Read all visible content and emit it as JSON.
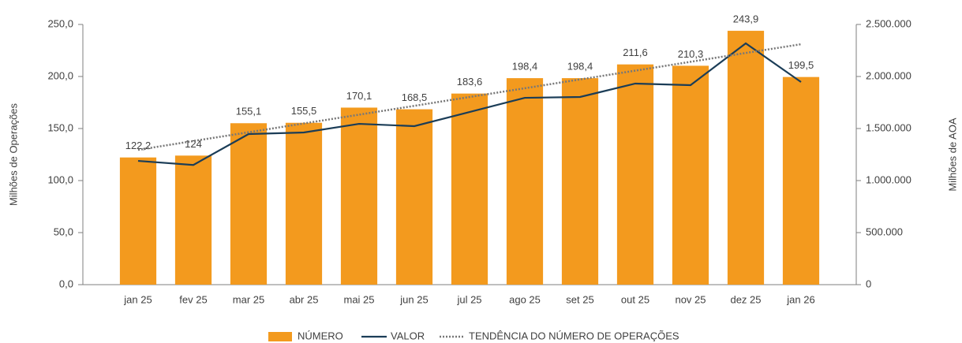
{
  "chart_data": {
    "type": "bar",
    "categories": [
      "jan 25",
      "fev 25",
      "mar 25",
      "abr 25",
      "mai 25",
      "jun 25",
      "jul 25",
      "ago 25",
      "set 25",
      "out 25",
      "nov 25",
      "dez 25",
      "jan 26"
    ],
    "series": [
      {
        "name": "NÚMERO",
        "type": "bar",
        "color": "#f39a1e",
        "values": [
          122.2,
          124,
          155.1,
          155.5,
          170.1,
          168.5,
          183.6,
          198.4,
          198.4,
          211.6,
          210.3,
          243.9,
          199.5
        ],
        "value_labels": [
          "122,2",
          "124",
          "155,1",
          "155,5",
          "170,1",
          "168,5",
          "183,6",
          "198,4",
          "198,4",
          "211,6",
          "210,3",
          "243,9",
          "199,5"
        ]
      },
      {
        "name": "VALOR",
        "type": "line",
        "axis": "y2",
        "color": "#1b3d57",
        "values": [
          1189000,
          1150000,
          1447000,
          1462000,
          1545000,
          1523000,
          1659000,
          1795000,
          1803000,
          1932000,
          1917000,
          2318000,
          1947000
        ]
      },
      {
        "name": "TENDÊNCIA DO NÚMERO DE OPERAÇÕES",
        "type": "line",
        "dash": true,
        "color": "#777777",
        "values": [
          129.5,
          138.0,
          146.4,
          154.9,
          163.3,
          171.8,
          180.3,
          188.7,
          197.2,
          205.6,
          214.1,
          222.6,
          231.0
        ]
      }
    ],
    "ylabel": "Milhões de Operações",
    "y2label": "Milhões de AOA",
    "ylim": [
      0,
      250
    ],
    "yticks": [
      {
        "value": 0,
        "label": "0,0"
      },
      {
        "value": 50,
        "label": "50,0"
      },
      {
        "value": 100,
        "label": "100,0"
      },
      {
        "value": 150,
        "label": "150,0"
      },
      {
        "value": 200,
        "label": "200,0"
      },
      {
        "value": 250,
        "label": "250,0"
      }
    ],
    "y2lim": [
      0,
      2500000
    ],
    "y2ticks": [
      0,
      {
        "value": 500000,
        "label": "500.000"
      },
      {
        "value": 1000000,
        "label": "1.000.000"
      },
      {
        "value": 1500000,
        "label": "1.500.000"
      },
      {
        "value": 2000000,
        "label": "2.000.000"
      },
      {
        "value": 2500000,
        "label": "2.500.000"
      }
    ],
    "legend": "bottom"
  }
}
